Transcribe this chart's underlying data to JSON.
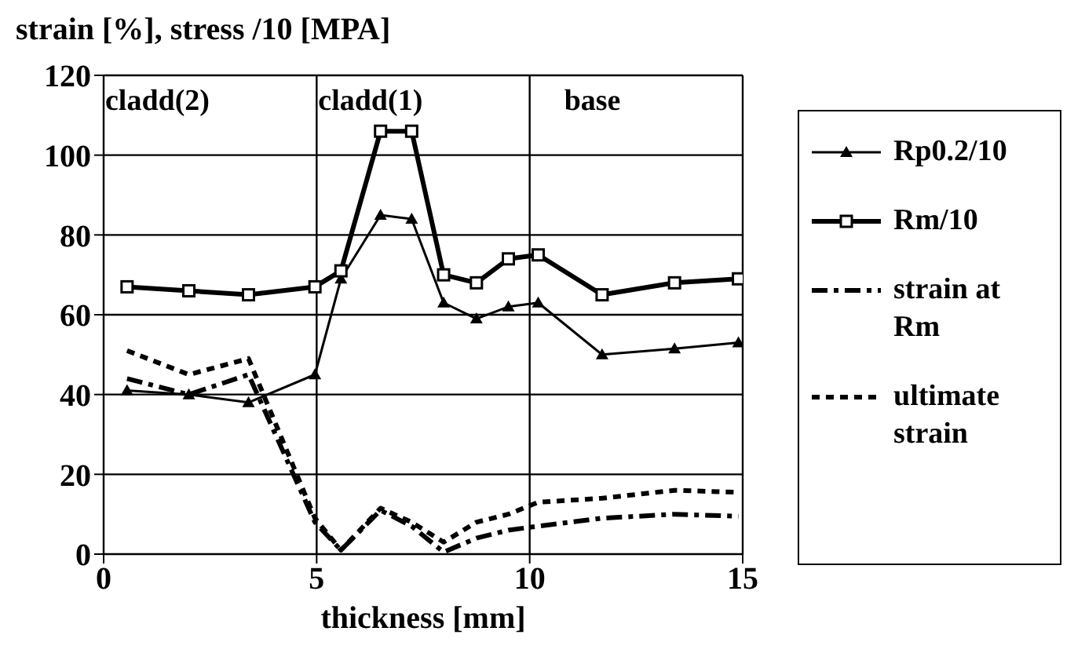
{
  "chart_data": {
    "type": "line",
    "title": "strain [%], stress /10 [MPA]",
    "xlabel": "thickness [mm]",
    "x": [
      0.55,
      2,
      3.4,
      4.96,
      5.57,
      6.5,
      7.23,
      7.98,
      8.75,
      9.5,
      10.2,
      11.7,
      13.4,
      14.9
    ],
    "series": [
      {
        "name": "Rp0.2/10",
        "color": "#000000",
        "marker": "triangle",
        "line_style": "solid",
        "values": [
          41,
          40,
          38,
          45,
          69,
          85,
          84,
          63,
          59,
          62,
          63,
          50,
          51.5,
          53
        ]
      },
      {
        "name": "Rm/10",
        "color": "#000000",
        "marker": "square",
        "line_style": "solid",
        "values": [
          67,
          66,
          65,
          67,
          71,
          106,
          106,
          70,
          68,
          74,
          75,
          65,
          68,
          69
        ]
      },
      {
        "name": "strain at Rm",
        "color": "#000000",
        "marker": "none",
        "line_style": "dashed",
        "values": [
          44,
          40,
          45,
          8,
          1,
          11,
          7,
          0.5,
          4,
          6,
          7,
          9,
          10,
          9.5
        ]
      },
      {
        "name": "ultimate strain",
        "color": "#000000",
        "marker": "none",
        "line_style": "dotted",
        "values": [
          51,
          45,
          49,
          9,
          1,
          11.5,
          8,
          3,
          8,
          10,
          13,
          14,
          16,
          15.5
        ]
      }
    ],
    "annotations": [
      "cladd(2)",
      "cladd(1)",
      "base"
    ],
    "xlim": [
      0,
      15
    ],
    "xticks": [
      0,
      5,
      10,
      15
    ],
    "ylim": [
      0,
      120
    ],
    "yticks": [
      0,
      20,
      40,
      60,
      80,
      100,
      120
    ],
    "grid": true,
    "legend": "right"
  }
}
